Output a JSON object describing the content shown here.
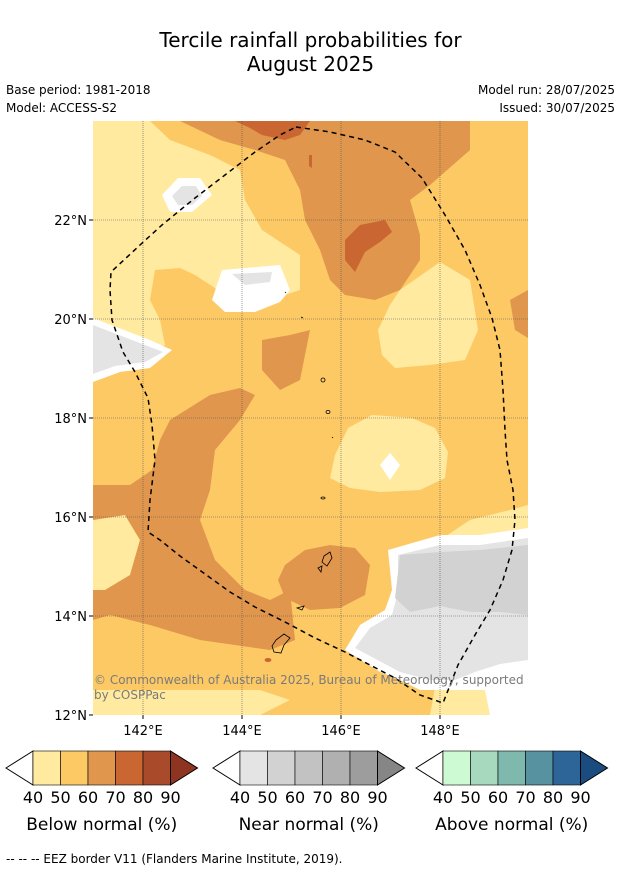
{
  "title_line1": "Tercile rainfall probabilities for",
  "title_line2": "August 2025",
  "meta": {
    "base_period": "Base period: 1981-2018",
    "model": "Model: ACCESS-S2",
    "model_run": "Model run: 28/07/2025",
    "issued": "Issued: 30/07/2025"
  },
  "axes": {
    "x_ticks": [
      "142°E",
      "144°E",
      "146°E",
      "148°E"
    ],
    "y_ticks": [
      "22°N",
      "20°N",
      "18°N",
      "16°N",
      "14°N",
      "12°N"
    ]
  },
  "copyright_line1": "© Commonwealth of Australia 2025, Bureau of Meteorology, supported",
  "copyright_line2": "by COSPPac",
  "colorbars": [
    {
      "label": "Below normal (%)",
      "ticks": [
        "40",
        "50",
        "60",
        "70",
        "80",
        "90"
      ],
      "colors": [
        "#ffeaa0",
        "#fdc965",
        "#e0964c",
        "#c96632",
        "#a94a2a",
        "#8e3421"
      ]
    },
    {
      "label": "Near normal (%)",
      "ticks": [
        "40",
        "50",
        "60",
        "70",
        "80",
        "90"
      ],
      "colors": [
        "#e4e4e4",
        "#d2d2d2",
        "#c2c2c2",
        "#b0b0b0",
        "#9d9d9d",
        "#868686"
      ]
    },
    {
      "label": "Above normal (%)",
      "ticks": [
        "40",
        "50",
        "60",
        "70",
        "80",
        "90"
      ],
      "colors": [
        "#cdfad2",
        "#a6d9bd",
        "#7fb9ae",
        "#5792a0",
        "#2e6598",
        "#1a4c80"
      ]
    }
  ],
  "footer": "-- -- -- EEZ border V11 (Flanders Marine Institute, 2019)."
}
